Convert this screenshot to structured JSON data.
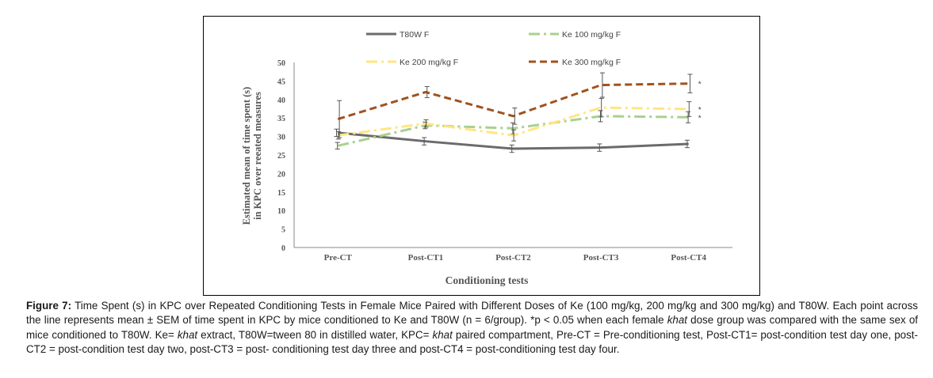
{
  "chart_data": {
    "type": "line",
    "categories": [
      "Pre-CT",
      "Post-CT1",
      "Post-CT2",
      "Post-CT3",
      "Post-CT4"
    ],
    "ylabel": [
      "Estimated mean of time spent (s)",
      "in KPC over reeated measures"
    ],
    "xlabel": "Conditioning tests",
    "ylim": [
      0,
      50
    ],
    "yticks": [
      0,
      5,
      10,
      15,
      20,
      25,
      30,
      35,
      40,
      45,
      50
    ],
    "legend_position": "top",
    "grid": false,
    "series": [
      {
        "name": "T80W F",
        "color": "#6b6b6b",
        "dash": "solid",
        "values": [
          31,
          28.7,
          26.7,
          27,
          28
        ],
        "errors": [
          1,
          1,
          1,
          1,
          1
        ],
        "marker": ""
      },
      {
        "name": "Ke 100 mg/kg F",
        "color": "#a9d18e",
        "dash": "longdash-dot",
        "values": [
          27.5,
          33,
          32.2,
          35.5,
          35.2
        ],
        "errors": [
          0.9,
          0.9,
          1.5,
          1.5,
          1.5
        ],
        "marker": "*"
      },
      {
        "name": "Ke 200 mg/kg F",
        "color": "#ffe680",
        "dash": "longdash-dot",
        "values": [
          30.3,
          33.5,
          30.3,
          37.8,
          37.4
        ],
        "errors": [
          1,
          1,
          1.5,
          2.5,
          2
        ],
        "marker": "*"
      },
      {
        "name": "Ke 300 mg/kg F",
        "color": "#a0521e",
        "dash": "dash",
        "values": [
          34.7,
          42,
          35.5,
          43.9,
          44.3
        ],
        "errors": [
          5,
          1.5,
          2.2,
          3.3,
          2.5
        ],
        "marker": "*"
      }
    ]
  },
  "caption": {
    "label": "Figure 7:",
    "parts": [
      {
        "t": " Time Spent (s) in KPC over Repeated Conditioning Tests in Female Mice Paired with Different Doses of Ke (100 mg/kg, 200 mg/kg and 300 mg/kg) and T80W. Each point across the line represents mean ± SEM of time spent in KPC by mice conditioned to Ke and T80W (n = 6/group). *p < 0.05 when each female ",
        "i": false
      },
      {
        "t": "khat",
        "i": true
      },
      {
        "t": " dose group was compared with the same sex of mice conditioned to T80W. Ke= ",
        "i": false
      },
      {
        "t": "khat",
        "i": true
      },
      {
        "t": " extract, T80W=tween 80 in distilled water, KPC= ",
        "i": false
      },
      {
        "t": "khat",
        "i": true
      },
      {
        "t": " paired compartment, Pre-CT = Pre-conditioning test, Post-CT1= post-condition test day one, post-CT2 = post-condition test day two, post-CT3 = post- conditioning test day three and post-CT4 = post-conditioning test day four.",
        "i": false
      }
    ]
  }
}
